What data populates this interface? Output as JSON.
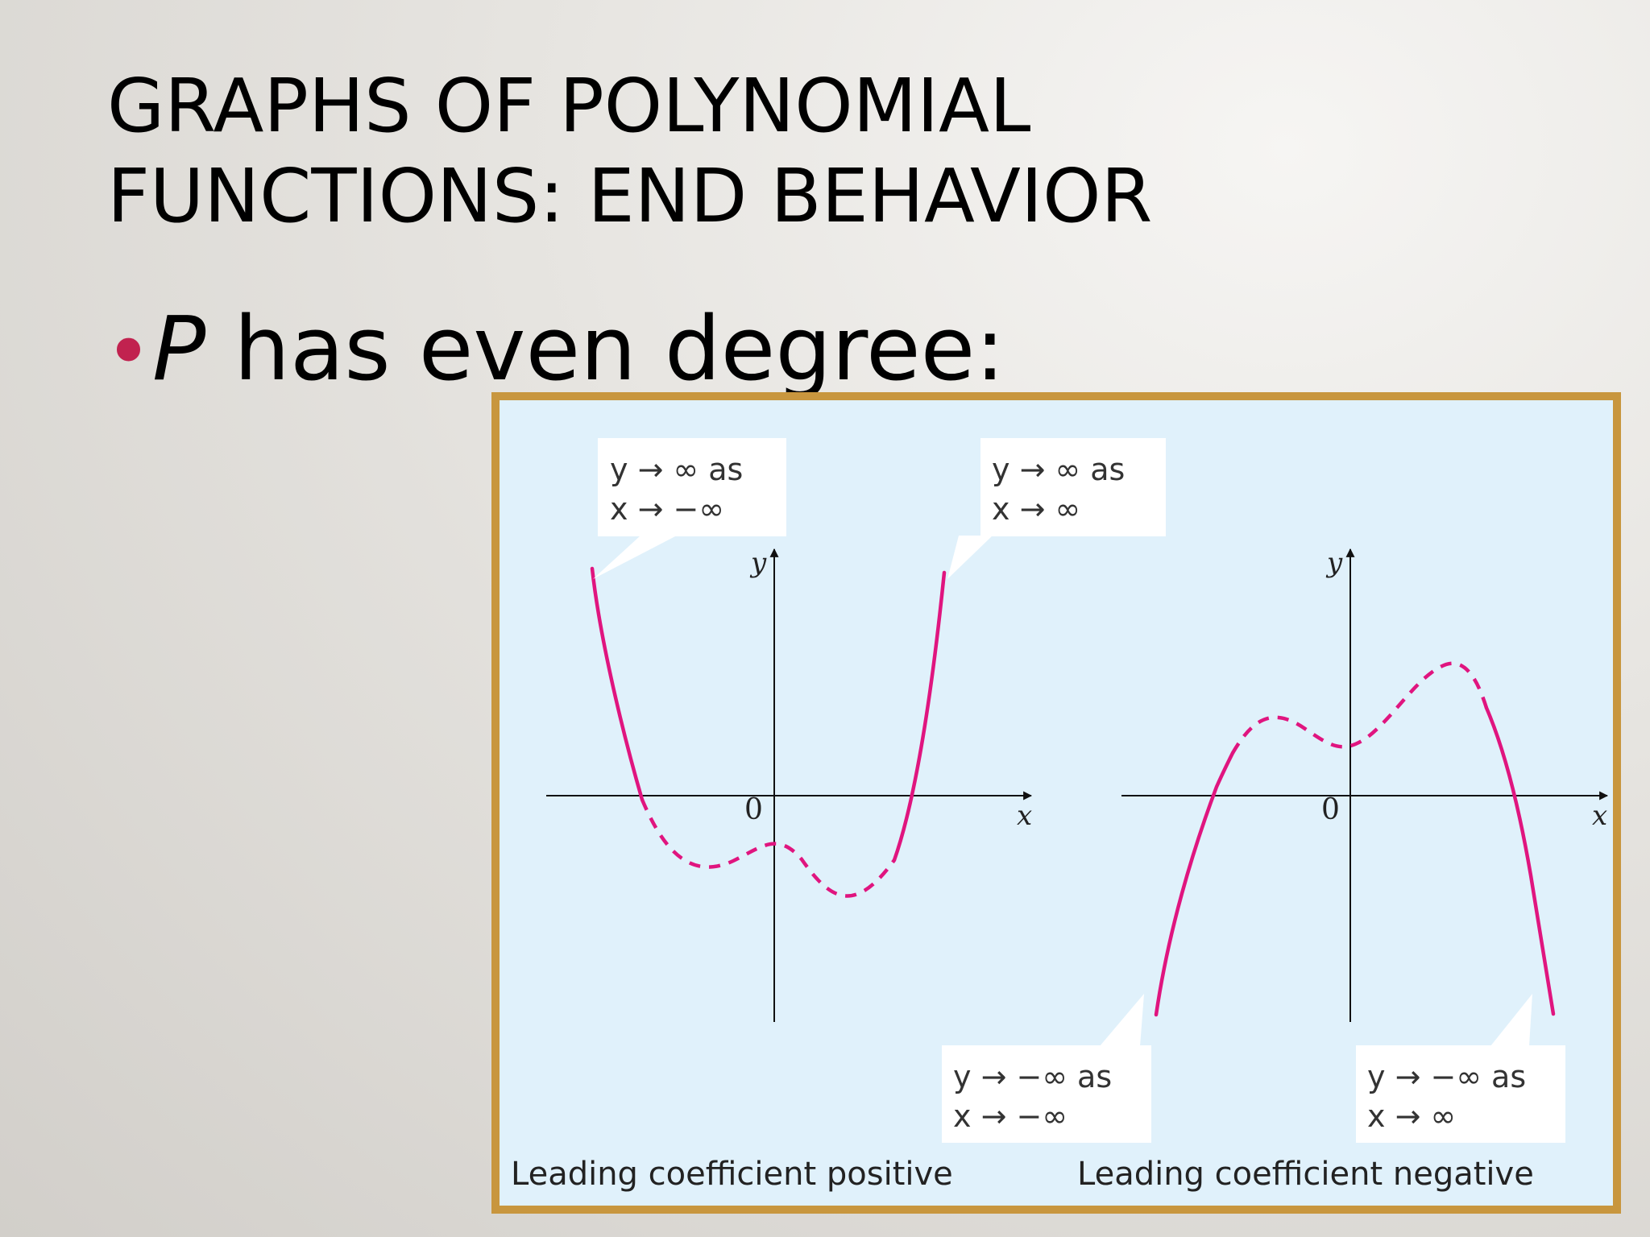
{
  "title": {
    "line1": "GRAPHS OF POLYNOMIAL",
    "line2": "FUNCTIONS: END BEHAVIOR"
  },
  "bullet": {
    "variable": "P",
    "text": " has even degree:"
  },
  "colors": {
    "curve": "#e0157f",
    "frame": "#c8963e",
    "figure_bg": "#e0f1fb",
    "bullet": "#c1224f"
  },
  "figure": {
    "left_panel": {
      "y_label": "y",
      "x_label": "x",
      "origin_label": "0",
      "caption": "Leading coefficient positive",
      "callout_top_left": {
        "line1": "y → ∞ as",
        "line2": "x → −∞"
      },
      "callout_top_right": {
        "line1": "y → ∞ as",
        "line2": "x → ∞"
      }
    },
    "right_panel": {
      "y_label": "y",
      "x_label": "x",
      "origin_label": "0",
      "caption": "Leading coefficient negative",
      "callout_bottom_left": {
        "line1": "y → −∞ as",
        "line2": "x → −∞"
      },
      "callout_bottom_right": {
        "line1": "y → −∞ as",
        "line2": "x → ∞"
      }
    }
  }
}
